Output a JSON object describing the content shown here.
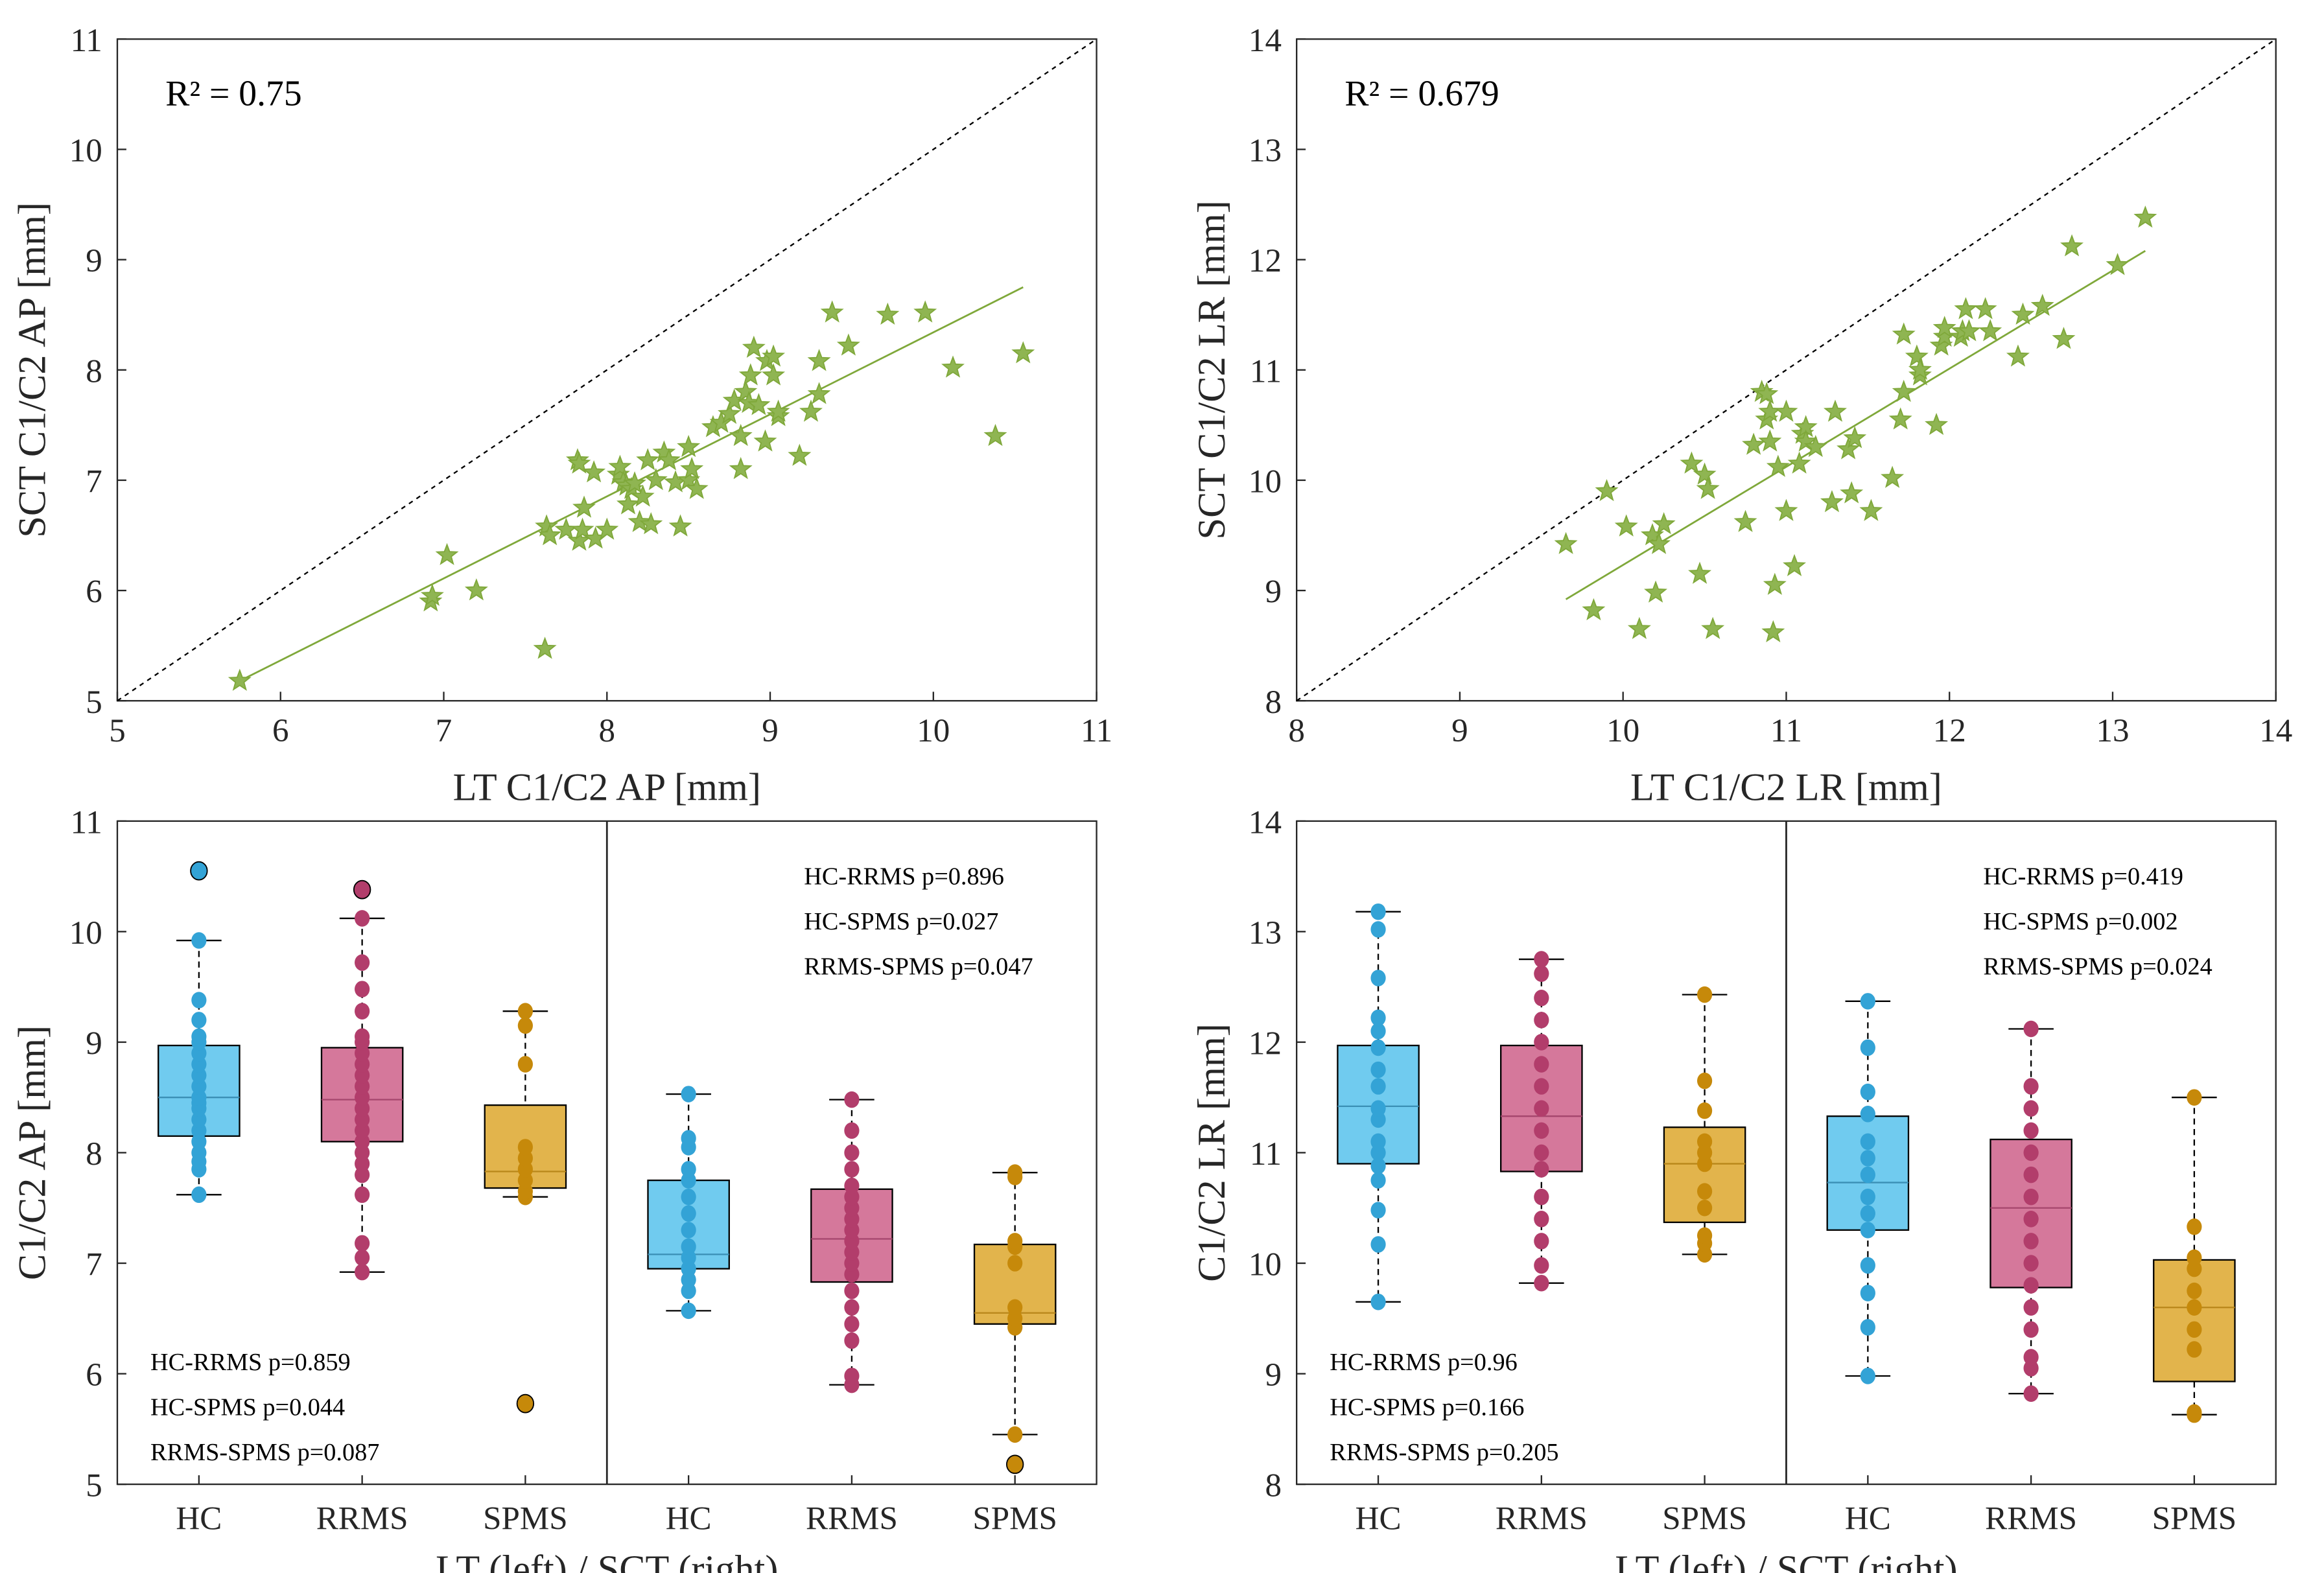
{
  "chart_data": [
    {
      "type": "scatter",
      "xlabel": "LT C1/C2 AP [mm]",
      "ylabel": "SCT C1/C2 AP [mm]",
      "xlim": [
        5,
        11
      ],
      "ylim": [
        5,
        11
      ],
      "xticks": [
        "5",
        "6",
        "7",
        "8",
        "9",
        "10",
        "11"
      ],
      "yticks": [
        "5",
        "6",
        "7",
        "8",
        "9",
        "10",
        "11"
      ],
      "annotation": "R² = 0.75",
      "marker": "star",
      "color": "#7fa83a",
      "identity_line": true,
      "fit_line": {
        "x": [
          5.75,
          10.55
        ],
        "y": [
          5.18,
          8.75
        ]
      },
      "points": [
        [
          5.75,
          5.18
        ],
        [
          6.92,
          5.9
        ],
        [
          6.93,
          5.95
        ],
        [
          7.02,
          6.32
        ],
        [
          7.2,
          6.0
        ],
        [
          7.62,
          5.47
        ],
        [
          7.63,
          6.58
        ],
        [
          7.65,
          6.5
        ],
        [
          7.75,
          6.55
        ],
        [
          7.82,
          7.18
        ],
        [
          7.83,
          7.15
        ],
        [
          7.83,
          6.45
        ],
        [
          7.85,
          6.55
        ],
        [
          7.86,
          6.75
        ],
        [
          7.92,
          7.07
        ],
        [
          7.93,
          6.47
        ],
        [
          8.0,
          6.55
        ],
        [
          8.07,
          7.05
        ],
        [
          8.08,
          7.12
        ],
        [
          8.1,
          6.98
        ],
        [
          8.12,
          6.95
        ],
        [
          8.13,
          6.78
        ],
        [
          8.15,
          6.92
        ],
        [
          8.17,
          6.97
        ],
        [
          8.2,
          6.62
        ],
        [
          8.22,
          6.85
        ],
        [
          8.25,
          7.18
        ],
        [
          8.27,
          6.6
        ],
        [
          8.3,
          7.0
        ],
        [
          8.35,
          7.25
        ],
        [
          8.38,
          7.18
        ],
        [
          8.42,
          6.98
        ],
        [
          8.45,
          6.58
        ],
        [
          8.5,
          7.3
        ],
        [
          8.5,
          7.0
        ],
        [
          8.52,
          7.1
        ],
        [
          8.55,
          6.92
        ],
        [
          8.65,
          7.48
        ],
        [
          8.7,
          7.52
        ],
        [
          8.75,
          7.6
        ],
        [
          8.78,
          7.72
        ],
        [
          8.82,
          7.4
        ],
        [
          8.82,
          7.1
        ],
        [
          8.85,
          7.8
        ],
        [
          8.87,
          7.7
        ],
        [
          8.88,
          7.95
        ],
        [
          8.9,
          8.2
        ],
        [
          8.93,
          7.68
        ],
        [
          8.97,
          7.35
        ],
        [
          8.98,
          8.08
        ],
        [
          9.02,
          8.12
        ],
        [
          9.05,
          7.58
        ],
        [
          9.05,
          7.62
        ],
        [
          9.02,
          7.95
        ],
        [
          9.18,
          7.22
        ],
        [
          9.25,
          7.62
        ],
        [
          9.3,
          7.78
        ],
        [
          9.3,
          8.08
        ],
        [
          9.38,
          8.52
        ],
        [
          9.48,
          8.22
        ],
        [
          9.72,
          8.5
        ],
        [
          9.95,
          8.52
        ],
        [
          10.12,
          8.02
        ],
        [
          10.38,
          7.4
        ],
        [
          10.55,
          8.15
        ]
      ]
    },
    {
      "type": "scatter",
      "xlabel": "LT C1/C2 LR [mm]",
      "ylabel": "SCT C1/C2 LR [mm]",
      "xlim": [
        8,
        14
      ],
      "ylim": [
        8,
        14
      ],
      "xticks": [
        "8",
        "9",
        "10",
        "11",
        "12",
        "13",
        "14"
      ],
      "yticks": [
        "8",
        "9",
        "10",
        "11",
        "12",
        "13",
        "14"
      ],
      "annotation": "R² = 0.679",
      "marker": "star",
      "color": "#7fa83a",
      "identity_line": true,
      "fit_line": {
        "x": [
          9.65,
          13.2
        ],
        "y": [
          8.92,
          12.08
        ]
      },
      "points": [
        [
          9.65,
          9.42
        ],
        [
          9.82,
          8.82
        ],
        [
          9.9,
          9.9
        ],
        [
          10.02,
          9.58
        ],
        [
          10.1,
          8.65
        ],
        [
          10.18,
          9.5
        ],
        [
          10.2,
          8.98
        ],
        [
          10.22,
          9.42
        ],
        [
          10.25,
          9.6
        ],
        [
          10.42,
          10.15
        ],
        [
          10.47,
          9.15
        ],
        [
          10.5,
          10.05
        ],
        [
          10.52,
          9.92
        ],
        [
          10.55,
          8.65
        ],
        [
          10.75,
          9.62
        ],
        [
          10.8,
          10.32
        ],
        [
          10.85,
          10.8
        ],
        [
          10.88,
          10.78
        ],
        [
          10.88,
          10.55
        ],
        [
          10.9,
          10.62
        ],
        [
          10.9,
          10.35
        ],
        [
          10.92,
          8.62
        ],
        [
          10.93,
          9.05
        ],
        [
          10.95,
          10.12
        ],
        [
          11.0,
          10.62
        ],
        [
          11.0,
          9.72
        ],
        [
          11.05,
          9.22
        ],
        [
          11.08,
          10.15
        ],
        [
          11.1,
          10.42
        ],
        [
          11.12,
          10.48
        ],
        [
          11.12,
          10.35
        ],
        [
          11.18,
          10.3
        ],
        [
          11.28,
          9.8
        ],
        [
          11.3,
          10.62
        ],
        [
          11.38,
          10.28
        ],
        [
          11.4,
          9.88
        ],
        [
          11.42,
          10.38
        ],
        [
          11.52,
          9.72
        ],
        [
          11.65,
          10.02
        ],
        [
          11.7,
          10.55
        ],
        [
          11.72,
          10.8
        ],
        [
          11.72,
          11.32
        ],
        [
          11.8,
          11.12
        ],
        [
          11.82,
          10.95
        ],
        [
          11.82,
          11.0
        ],
        [
          11.92,
          10.5
        ],
        [
          11.95,
          11.22
        ],
        [
          11.97,
          11.3
        ],
        [
          11.97,
          11.38
        ],
        [
          12.07,
          11.3
        ],
        [
          12.08,
          11.35
        ],
        [
          12.1,
          11.55
        ],
        [
          12.12,
          11.35
        ],
        [
          12.22,
          11.55
        ],
        [
          12.25,
          11.35
        ],
        [
          12.42,
          11.12
        ],
        [
          12.45,
          11.5
        ],
        [
          12.57,
          11.58
        ],
        [
          12.7,
          11.28
        ],
        [
          12.75,
          12.12
        ],
        [
          13.03,
          11.95
        ],
        [
          13.2,
          12.38
        ]
      ]
    },
    {
      "type": "box",
      "xlabel": "LT (left) / SCT (right)",
      "ylabel": "C1/C2 AP [mm]",
      "ylim": [
        5,
        11
      ],
      "yticks": [
        "5",
        "6",
        "7",
        "8",
        "9",
        "10",
        "11"
      ],
      "categories": [
        "HC",
        "RRMS",
        "SPMS",
        "HC",
        "RRMS",
        "SPMS"
      ],
      "pvalues_left": [
        "HC-RRMS p=0.859",
        "HC-SPMS p=0.044",
        "RRMS-SPMS p=0.087"
      ],
      "pvalues_right": [
        "HC-RRMS p=0.896",
        "HC-SPMS p=0.027",
        "RRMS-SPMS p=0.047"
      ],
      "boxes": [
        {
          "group": "HC",
          "q1": 8.15,
          "median": 8.5,
          "q3": 8.97,
          "whisker_low": 7.62,
          "whisker_high": 9.92,
          "outliers": [
            10.55
          ],
          "points": [
            7.62,
            7.85,
            7.92,
            8.0,
            8.1,
            8.2,
            8.3,
            8.4,
            8.45,
            8.5,
            8.6,
            8.7,
            8.8,
            8.9,
            9.0,
            9.05,
            9.2,
            9.38,
            9.92
          ]
        },
        {
          "group": "RRMS",
          "q1": 8.1,
          "median": 8.48,
          "q3": 8.95,
          "whisker_low": 6.92,
          "whisker_high": 10.12,
          "outliers": [
            10.38
          ],
          "points": [
            6.92,
            7.05,
            7.18,
            7.62,
            7.8,
            7.9,
            8.0,
            8.1,
            8.2,
            8.3,
            8.4,
            8.5,
            8.6,
            8.7,
            8.8,
            8.9,
            9.0,
            9.05,
            9.28,
            9.48,
            9.72,
            10.12
          ]
        },
        {
          "group": "SPMS",
          "q1": 7.68,
          "median": 7.83,
          "q3": 8.43,
          "whisker_low": 7.6,
          "whisker_high": 9.28,
          "outliers": [
            5.73
          ],
          "points": [
            7.6,
            7.65,
            7.75,
            7.85,
            7.95,
            8.05,
            8.8,
            9.15,
            9.28
          ]
        },
        {
          "group": "HC",
          "q1": 6.95,
          "median": 7.08,
          "q3": 7.75,
          "whisker_low": 6.57,
          "whisker_high": 8.53,
          "outliers": [],
          "points": [
            6.57,
            6.75,
            6.85,
            6.95,
            7.05,
            7.15,
            7.3,
            7.45,
            7.6,
            7.75,
            7.85,
            8.05,
            8.13,
            8.53
          ]
        },
        {
          "group": "RRMS",
          "q1": 6.83,
          "median": 7.22,
          "q3": 7.67,
          "whisker_low": 5.9,
          "whisker_high": 8.48,
          "outliers": [],
          "points": [
            5.9,
            5.98,
            6.3,
            6.45,
            6.6,
            6.75,
            6.9,
            7.0,
            7.1,
            7.2,
            7.3,
            7.4,
            7.5,
            7.6,
            7.7,
            7.85,
            8.0,
            8.2,
            8.48
          ]
        },
        {
          "group": "SPMS",
          "q1": 6.45,
          "median": 6.55,
          "q3": 7.17,
          "whisker_low": 5.45,
          "whisker_high": 7.82,
          "outliers": [
            5.18
          ],
          "points": [
            5.45,
            6.42,
            6.5,
            6.6,
            7.0,
            7.15,
            7.2,
            7.78,
            7.82
          ]
        }
      ]
    },
    {
      "type": "box",
      "xlabel": "LT (left) / SCT (right)",
      "ylabel": "C1/C2 LR [mm]",
      "ylim": [
        8,
        14
      ],
      "yticks": [
        "8",
        "9",
        "10",
        "11",
        "12",
        "13",
        "14"
      ],
      "categories": [
        "HC",
        "RRMS",
        "SPMS",
        "HC",
        "RRMS",
        "SPMS"
      ],
      "pvalues_left": [
        "HC-RRMS p=0.96",
        "HC-SPMS p=0.166",
        "RRMS-SPMS p=0.205"
      ],
      "pvalues_right": [
        "HC-RRMS p=0.419",
        "HC-SPMS p=0.002",
        "RRMS-SPMS p=0.024"
      ],
      "boxes": [
        {
          "group": "HC",
          "q1": 10.9,
          "median": 11.42,
          "q3": 11.97,
          "whisker_low": 9.65,
          "whisker_high": 13.18,
          "outliers": [],
          "points": [
            9.65,
            10.17,
            10.48,
            10.75,
            10.88,
            11.0,
            11.1,
            11.3,
            11.4,
            11.6,
            11.75,
            11.95,
            12.1,
            12.22,
            12.58,
            13.02,
            13.18
          ]
        },
        {
          "group": "RRMS",
          "q1": 10.83,
          "median": 11.33,
          "q3": 11.97,
          "whisker_low": 9.82,
          "whisker_high": 12.75,
          "outliers": [],
          "points": [
            9.82,
            9.98,
            10.2,
            10.4,
            10.6,
            10.85,
            11.0,
            11.2,
            11.4,
            11.6,
            11.8,
            12.0,
            12.2,
            12.4,
            12.62,
            12.75
          ]
        },
        {
          "group": "SPMS",
          "q1": 10.37,
          "median": 10.9,
          "q3": 11.23,
          "whisker_low": 10.08,
          "whisker_high": 12.43,
          "outliers": [],
          "points": [
            10.08,
            10.18,
            10.25,
            10.5,
            10.65,
            10.9,
            11.0,
            11.1,
            11.38,
            11.65,
            12.43
          ]
        },
        {
          "group": "HC",
          "q1": 10.3,
          "median": 10.73,
          "q3": 11.33,
          "whisker_low": 8.98,
          "whisker_high": 12.37,
          "outliers": [],
          "points": [
            8.98,
            9.42,
            9.73,
            9.98,
            10.3,
            10.45,
            10.6,
            10.8,
            10.95,
            11.1,
            11.35,
            11.55,
            11.95,
            12.37
          ]
        },
        {
          "group": "RRMS",
          "q1": 9.78,
          "median": 10.5,
          "q3": 11.12,
          "whisker_low": 8.82,
          "whisker_high": 12.12,
          "outliers": [],
          "points": [
            8.82,
            9.05,
            9.15,
            9.4,
            9.6,
            9.8,
            10.0,
            10.2,
            10.4,
            10.6,
            10.8,
            11.0,
            11.2,
            11.4,
            11.6,
            12.12
          ]
        },
        {
          "group": "SPMS",
          "q1": 8.93,
          "median": 9.6,
          "q3": 10.03,
          "whisker_low": 8.63,
          "whisker_high": 11.5,
          "outliers": [],
          "points": [
            8.63,
            8.65,
            9.22,
            9.4,
            9.6,
            9.75,
            9.95,
            10.05,
            10.33,
            11.5
          ]
        }
      ]
    }
  ],
  "group_colors": {
    "HC": {
      "fill": "#70cbef",
      "dot": "#33a3d6",
      "median": "#3a8fb5"
    },
    "RRMS": {
      "fill": "#d5789b",
      "dot": "#b23d6b",
      "median": "#a5466d"
    },
    "SPMS": {
      "fill": "#e2b44c",
      "dot": "#c6890a",
      "median": "#b8861a"
    }
  }
}
